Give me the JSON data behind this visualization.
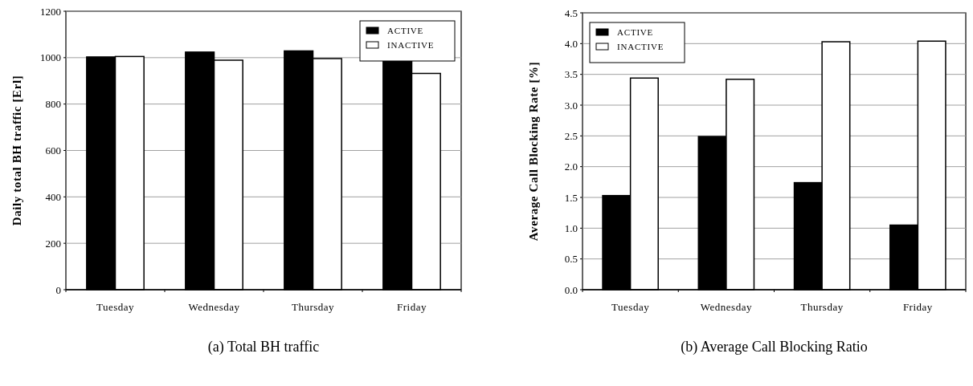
{
  "chart_data": [
    {
      "type": "bar",
      "title": "(a) Total BH traffic",
      "ylabel": "Daily total BH traffic [Erl]",
      "categories": [
        "Tuesday",
        "Wednesday",
        "Thursday",
        "Friday"
      ],
      "series": [
        {
          "name": "ACTIVE",
          "color": "#000000",
          "values": [
            1003,
            1024,
            1029,
            995
          ]
        },
        {
          "name": "INACTIVE",
          "color": "#ffffff",
          "values": [
            1005,
            989,
            996,
            932
          ]
        }
      ],
      "ylim": [
        0,
        1200
      ],
      "yticks": [
        0,
        200,
        400,
        600,
        800,
        1000,
        1200
      ],
      "grid": "y",
      "legend": "top right"
    },
    {
      "type": "bar",
      "title": "(b) Average Call Blocking Ratio",
      "ylabel": "Average Call Blocking Rate [%]",
      "categories": [
        "Tuesday",
        "Wednesday",
        "Thursday",
        "Friday"
      ],
      "series": [
        {
          "name": "ACTIVE",
          "color": "#000000",
          "values": [
            1.53,
            2.49,
            1.74,
            1.05
          ]
        },
        {
          "name": "INACTIVE",
          "color": "#ffffff",
          "values": [
            3.44,
            3.42,
            4.03,
            4.04
          ]
        }
      ],
      "ylim": [
        0,
        4.5
      ],
      "yticks": [
        {
          "value": 0,
          "label": "0.0"
        },
        {
          "value": 0.5,
          "label": "0.5"
        },
        {
          "value": 1,
          "label": "1.0"
        },
        {
          "value": 1.5,
          "label": "1.5"
        },
        {
          "value": 2,
          "label": "2.0"
        },
        {
          "value": 2.5,
          "label": "2.5"
        },
        {
          "value": 3,
          "label": "3.0"
        },
        {
          "value": 3.5,
          "label": "3.5"
        },
        {
          "value": 4,
          "label": "4.0"
        },
        {
          "value": 4.5,
          "label": "4.5"
        }
      ],
      "grid": "y",
      "legend": "top left"
    }
  ]
}
